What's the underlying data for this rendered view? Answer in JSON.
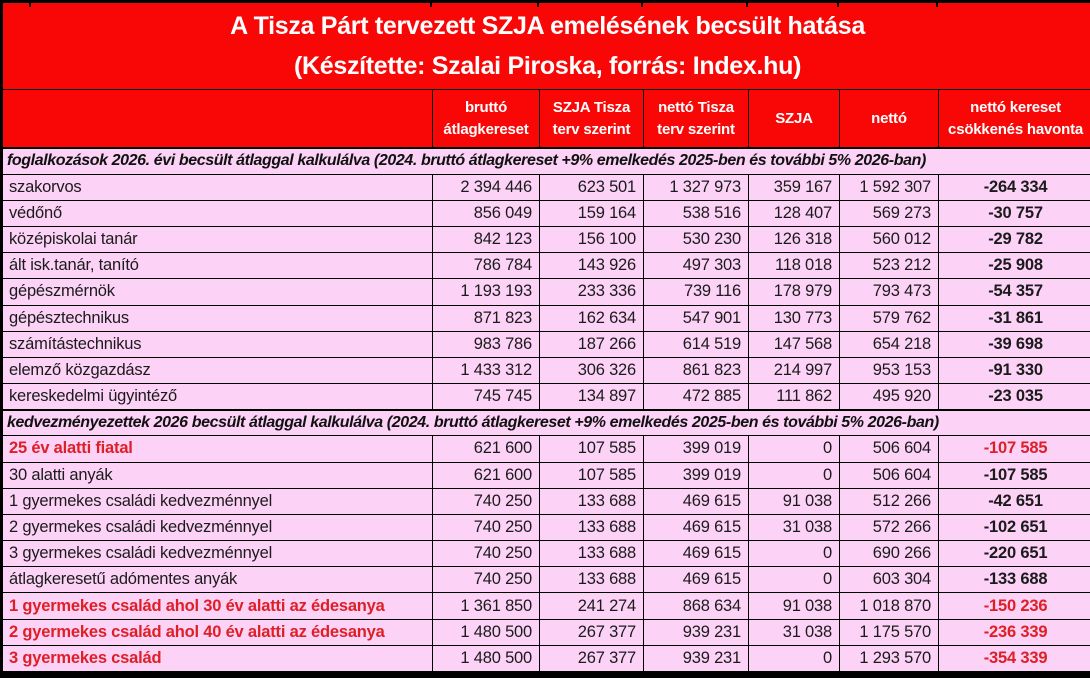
{
  "title": {
    "line1": "A Tisza Párt tervezett SZJA emelésének becsült hatása",
    "line2": "(Készítette: Szalai Piroska, forrás: Index.hu)"
  },
  "colors": {
    "header_background": "#F90606",
    "header_text": "#FFFFFF",
    "body_background": "#FCD2F7",
    "highlight_red_text": "#DE1F26",
    "body_text": "#1B1B1B",
    "border": "#000000"
  },
  "chart_data": {
    "type": "table",
    "columns": [
      "",
      "bruttó átlagkereset",
      "SZJA Tisza terv szerint",
      "nettó Tisza terv szerint",
      "SZJA",
      "nettó",
      "nettó kereset csökkenés havonta"
    ],
    "sections": [
      {
        "header": "foglalkozások 2026. évi becsült átlaggal kalkulálva (2024. bruttó átlagkereset +9% emelkedés 2025-ben és további 5% 2026-ban)",
        "rows": [
          {
            "label": "szakorvos",
            "values": [
              "2 394 446",
              "623 501",
              "1 327 973",
              "359 167",
              "1 592 307",
              "-264 334"
            ],
            "label_red": false,
            "diff_red": false
          },
          {
            "label": "védőnő",
            "values": [
              "856 049",
              "159 164",
              "538 516",
              "128 407",
              "569 273",
              "-30 757"
            ],
            "label_red": false,
            "diff_red": false
          },
          {
            "label": "középiskolai tanár",
            "values": [
              "842 123",
              "156 100",
              "530 230",
              "126 318",
              "560 012",
              "-29 782"
            ],
            "label_red": false,
            "diff_red": false
          },
          {
            "label": "ált isk.tanár, tanító",
            "values": [
              "786 784",
              "143 926",
              "497 303",
              "118 018",
              "523 212",
              "-25 908"
            ],
            "label_red": false,
            "diff_red": false
          },
          {
            "label": "gépészmérnök",
            "values": [
              "1 193 193",
              "233 336",
              "739 116",
              "178 979",
              "793 473",
              "-54 357"
            ],
            "label_red": false,
            "diff_red": false
          },
          {
            "label": "gépésztechnikus",
            "values": [
              "871 823",
              "162 634",
              "547 901",
              "130 773",
              "579 762",
              "-31 861"
            ],
            "label_red": false,
            "diff_red": false
          },
          {
            "label": "számítástechnikus",
            "values": [
              "983 786",
              "187 266",
              "614 519",
              "147 568",
              "654 218",
              "-39 698"
            ],
            "label_red": false,
            "diff_red": false
          },
          {
            "label": "elemző közgazdász",
            "values": [
              "1 433 312",
              "306 326",
              "861 823",
              "214 997",
              "953 153",
              "-91 330"
            ],
            "label_red": false,
            "diff_red": false
          },
          {
            "label": "kereskedelmi ügyintéző",
            "values": [
              "745 745",
              "134 897",
              "472 885",
              "111 862",
              "495 920",
              "-23 035"
            ],
            "label_red": false,
            "diff_red": false
          }
        ]
      },
      {
        "header": "kedvezményezettek 2026 becsült átlaggal kalkulálva (2024. bruttó átlagkereset +9% emelkedés 2025-ben és további 5% 2026-ban)",
        "rows": [
          {
            "label": "25 év alatti fiatal",
            "values": [
              "621 600",
              "107 585",
              "399 019",
              "0",
              "506 604",
              "-107 585"
            ],
            "label_red": true,
            "diff_red": true
          },
          {
            "label": "30 alatti anyák",
            "values": [
              "621 600",
              "107 585",
              "399 019",
              "0",
              "506 604",
              "-107 585"
            ],
            "label_red": false,
            "diff_red": false
          },
          {
            "label": "1 gyermekes családi kedvezménnyel",
            "values": [
              "740 250",
              "133 688",
              "469 615",
              "91 038",
              "512 266",
              "-42 651"
            ],
            "label_red": false,
            "diff_red": false
          },
          {
            "label": "2 gyermekes családi kedvezménnyel",
            "values": [
              "740 250",
              "133 688",
              "469 615",
              "31 038",
              "572 266",
              "-102 651"
            ],
            "label_red": false,
            "diff_red": false
          },
          {
            "label": "3 gyermekes családi kedvezménnyel",
            "values": [
              "740 250",
              "133 688",
              "469 615",
              "0",
              "690 266",
              "-220 651"
            ],
            "label_red": false,
            "diff_red": false
          },
          {
            "label": "átlagkeresetű adómentes anyák",
            "values": [
              "740 250",
              "133 688",
              "469 615",
              "0",
              "603 304",
              "-133 688"
            ],
            "label_red": false,
            "diff_red": false
          },
          {
            "label": "1 gyermekes család ahol 30 év alatti az édesanya",
            "values": [
              "1 361 850",
              "241 274",
              "868 634",
              "91 038",
              "1 018 870",
              "-150 236"
            ],
            "label_red": true,
            "diff_red": true
          },
          {
            "label": "2 gyermekes család ahol 40 év alatti az édesanya",
            "values": [
              "1 480 500",
              "267 377",
              "939 231",
              "31 038",
              "1 175 570",
              "-236 339"
            ],
            "label_red": true,
            "diff_red": true
          },
          {
            "label": "3 gyermekes család",
            "values": [
              "1 480 500",
              "267 377",
              "939 231",
              "0",
              "1 293 570",
              "-354 339"
            ],
            "label_red": true,
            "diff_red": true
          }
        ]
      }
    ]
  }
}
